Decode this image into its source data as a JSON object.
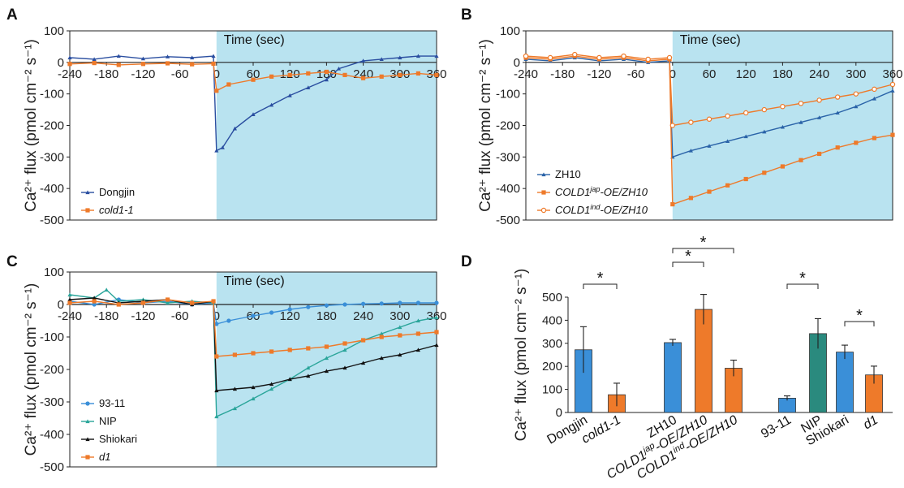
{
  "panels": [
    {
      "letter": "A"
    },
    {
      "letter": "B"
    },
    {
      "letter": "C"
    },
    {
      "letter": "D"
    }
  ],
  "chart_data": [
    {
      "id": "A",
      "type": "line",
      "title": "",
      "time_label": "Time (sec)",
      "ylabel": "Ca²⁺ flux (pmol cm⁻² s⁻¹)",
      "xlim": [
        -240,
        360
      ],
      "ylim": [
        -500,
        100
      ],
      "xticks": [
        "-240",
        "-180",
        "-120",
        "-60",
        "0",
        "60",
        "120",
        "180",
        "240",
        "300",
        "360"
      ],
      "yticks": [
        "100",
        "0",
        "-100",
        "-200",
        "-300",
        "-400",
        "-500"
      ],
      "shaded_region": [
        0,
        360
      ],
      "legend_position": "bottom-left",
      "series": [
        {
          "name": "Dongjin",
          "italic": false,
          "color": "#2a4ea0",
          "marker": "triangle",
          "x": [
            -240,
            -200,
            -160,
            -120,
            -80,
            -40,
            -5,
            0,
            10,
            30,
            60,
            90,
            120,
            150,
            180,
            200,
            240,
            270,
            300,
            330,
            360
          ],
          "y": [
            15,
            10,
            20,
            12,
            18,
            15,
            20,
            -280,
            -270,
            -210,
            -165,
            -135,
            -105,
            -80,
            -55,
            -20,
            5,
            10,
            15,
            20,
            20
          ]
        },
        {
          "name": "cold1-1",
          "italic": true,
          "color": "#ee7a2a",
          "marker": "square",
          "x": [
            -240,
            -200,
            -160,
            -120,
            -80,
            -40,
            -5,
            0,
            20,
            60,
            90,
            120,
            150,
            180,
            210,
            240,
            270,
            300,
            330,
            360
          ],
          "y": [
            -5,
            -2,
            -8,
            -5,
            -3,
            -6,
            -4,
            -90,
            -70,
            -55,
            -45,
            -40,
            -35,
            -30,
            -40,
            -50,
            -45,
            -40,
            -35,
            -40
          ]
        }
      ]
    },
    {
      "id": "B",
      "type": "line",
      "title": "",
      "time_label": "Time (sec)",
      "ylabel": "Ca²⁺ flux (pmol cm⁻² s⁻¹)",
      "xlim": [
        -240,
        360
      ],
      "ylim": [
        -500,
        100
      ],
      "xticks": [
        "-240",
        "-180",
        "-120",
        "-60",
        "0",
        "60",
        "120",
        "180",
        "240",
        "300",
        "360"
      ],
      "yticks": [
        "100",
        "0",
        "-100",
        "-200",
        "-300",
        "-400",
        "-500"
      ],
      "shaded_region": [
        0,
        360
      ],
      "legend_position": "bottom-left",
      "series": [
        {
          "name": "ZH10",
          "italic": false,
          "color": "#2a63a8",
          "marker": "triangle",
          "x": [
            -240,
            -200,
            -160,
            -120,
            -80,
            -40,
            -5,
            0,
            30,
            60,
            90,
            120,
            150,
            180,
            210,
            240,
            270,
            300,
            330,
            360
          ],
          "y": [
            10,
            5,
            15,
            5,
            10,
            0,
            5,
            -300,
            -280,
            -265,
            -250,
            -235,
            -220,
            -205,
            -190,
            -175,
            -160,
            -140,
            -115,
            -90
          ]
        },
        {
          "name_parts": [
            "COLD1",
            "jap",
            "-OE/ZH10"
          ],
          "name": "COLD1jap-OE/ZH10",
          "italic": true,
          "color": "#ee7a2a",
          "marker": "square",
          "x": [
            -240,
            -200,
            -160,
            -120,
            -80,
            -40,
            -5,
            0,
            30,
            60,
            90,
            120,
            150,
            180,
            210,
            240,
            270,
            300,
            330,
            360
          ],
          "y": [
            15,
            10,
            20,
            10,
            15,
            5,
            10,
            -450,
            -430,
            -410,
            -390,
            -370,
            -350,
            -330,
            -310,
            -290,
            -270,
            -255,
            -240,
            -230
          ]
        },
        {
          "name_parts": [
            "COLD1",
            "ind",
            "-OE/ZH10"
          ],
          "name": "COLD1ind-OE/ZH10",
          "italic": true,
          "color": "#ee7a2a",
          "marker": "open-circle",
          "x": [
            -240,
            -200,
            -160,
            -120,
            -80,
            -40,
            -5,
            0,
            30,
            60,
            90,
            120,
            150,
            180,
            210,
            240,
            270,
            300,
            330,
            360
          ],
          "y": [
            20,
            15,
            25,
            15,
            20,
            10,
            15,
            -200,
            -190,
            -180,
            -170,
            -160,
            -150,
            -140,
            -130,
            -120,
            -110,
            -100,
            -85,
            -70
          ]
        }
      ]
    },
    {
      "id": "C",
      "type": "line",
      "title": "",
      "time_label": "Time (sec)",
      "ylabel": "Ca²⁺ flux (pmol cm⁻² s⁻¹)",
      "xlim": [
        -240,
        360
      ],
      "ylim": [
        -500,
        100
      ],
      "xticks": [
        "-240",
        "-180",
        "-120",
        "-60",
        "0",
        "60",
        "120",
        "180",
        "240",
        "300",
        "360"
      ],
      "yticks": [
        "100",
        "0",
        "-100",
        "-200",
        "-300",
        "-400",
        "-500"
      ],
      "shaded_region": [
        0,
        360
      ],
      "legend_position": "bottom-left",
      "series": [
        {
          "name": "93-11",
          "italic": false,
          "color": "#3a8fd8",
          "marker": "circle",
          "x": [
            -240,
            -200,
            -160,
            -120,
            -80,
            -40,
            -5,
            0,
            20,
            60,
            90,
            120,
            150,
            180,
            210,
            240,
            270,
            300,
            330,
            360
          ],
          "y": [
            10,
            0,
            15,
            5,
            10,
            0,
            5,
            -60,
            -50,
            -35,
            -25,
            -15,
            -8,
            -3,
            0,
            2,
            3,
            5,
            5,
            5
          ]
        },
        {
          "name": "NIP",
          "italic": false,
          "color": "#2aa59a",
          "marker": "triangle",
          "x": [
            -240,
            -200,
            -180,
            -160,
            -120,
            -80,
            -40,
            -5,
            0,
            30,
            60,
            90,
            120,
            150,
            180,
            210,
            240,
            270,
            300,
            330,
            360
          ],
          "y": [
            30,
            20,
            45,
            10,
            15,
            5,
            10,
            5,
            -345,
            -320,
            -290,
            -260,
            -230,
            -195,
            -165,
            -140,
            -110,
            -90,
            -70,
            -50,
            -40
          ]
        },
        {
          "name": "Shiokari",
          "italic": false,
          "color": "#111111",
          "marker": "triangle",
          "x": [
            -240,
            -200,
            -160,
            -120,
            -80,
            -40,
            -5,
            0,
            30,
            60,
            90,
            120,
            150,
            180,
            210,
            240,
            270,
            300,
            330,
            360
          ],
          "y": [
            15,
            20,
            5,
            10,
            15,
            0,
            10,
            -265,
            -260,
            -255,
            -245,
            -230,
            -220,
            -205,
            -195,
            -180,
            -165,
            -155,
            -140,
            -125
          ]
        },
        {
          "name": "d1",
          "italic": true,
          "color": "#ee7a2a",
          "marker": "square",
          "x": [
            -240,
            -200,
            -160,
            -120,
            -80,
            -40,
            -5,
            0,
            30,
            60,
            90,
            120,
            150,
            180,
            210,
            240,
            270,
            300,
            330,
            360
          ],
          "y": [
            5,
            10,
            0,
            5,
            15,
            5,
            10,
            -160,
            -155,
            -150,
            -145,
            -140,
            -135,
            -130,
            -120,
            -110,
            -100,
            -95,
            -90,
            -85
          ]
        }
      ]
    },
    {
      "id": "D",
      "type": "bar",
      "title": "",
      "ylabel": "Ca²⁺ flux (pmol cm⁻² s⁻¹)",
      "ylim": [
        0,
        500
      ],
      "yticks": [
        "500",
        "400",
        "300",
        "200",
        "100",
        "0"
      ],
      "categories": [
        {
          "label": "Dongjin",
          "italic": false,
          "value": 272,
          "err": 100,
          "color": "#3a8fd8"
        },
        {
          "label": "cold1-1",
          "italic": true,
          "value": 77,
          "err": 50,
          "color": "#ee7a2a"
        },
        {
          "label": "ZH10",
          "italic": false,
          "value": 303,
          "err": 14,
          "color": "#3a8fd8"
        },
        {
          "label_parts": [
            "COLD1",
            "jap",
            "-OE/ZH10"
          ],
          "label": "COLD1jap-OE/ZH10",
          "italic": true,
          "value": 447,
          "err": 65,
          "color": "#ee7a2a"
        },
        {
          "label_parts": [
            "COLD1",
            "ind",
            "-OE/ZH10"
          ],
          "label": "COLD1ind-OE/ZH10",
          "italic": true,
          "value": 192,
          "err": 35,
          "color": "#ee7a2a"
        },
        {
          "label": "93-11",
          "italic": false,
          "value": 62,
          "err": 10,
          "color": "#3a8fd8"
        },
        {
          "label": "NIP",
          "italic": false,
          "value": 342,
          "err": 65,
          "color": "#2a8a7e"
        },
        {
          "label": "Shiokari",
          "italic": false,
          "value": 262,
          "err": 30,
          "color": "#3a8fd8"
        },
        {
          "label": "d1",
          "italic": true,
          "value": 163,
          "err": 38,
          "color": "#ee7a2a"
        }
      ],
      "significance": [
        {
          "from": 0,
          "to": 1,
          "label": "*"
        },
        {
          "from": 2,
          "to": 3,
          "label": "*"
        },
        {
          "from": 2,
          "to": 4,
          "label": "*"
        },
        {
          "from": 5,
          "to": 6,
          "label": "*"
        },
        {
          "from": 7,
          "to": 8,
          "label": "*"
        }
      ]
    }
  ]
}
